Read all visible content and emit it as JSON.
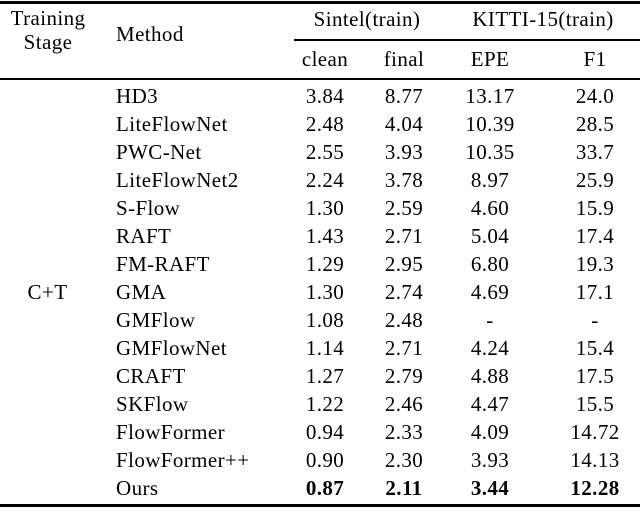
{
  "colors": {
    "text": "#000000",
    "background": "#ffffff",
    "rule": "#000000"
  },
  "table": {
    "header": {
      "stage_line1": "Training",
      "stage_line2": "Stage",
      "method": "Method",
      "group_sintel": "Sintel(train)",
      "group_kitti": "KITTI-15(train)",
      "sub_clean": "clean",
      "sub_final": "final",
      "sub_epe": "EPE",
      "sub_f1": "F1"
    },
    "training_stage": "C+T",
    "rows": [
      {
        "method": "HD3",
        "clean": "3.84",
        "final": "8.77",
        "epe": "13.17",
        "f1": "24.0"
      },
      {
        "method": "LiteFlowNet",
        "clean": "2.48",
        "final": "4.04",
        "epe": "10.39",
        "f1": "28.5"
      },
      {
        "method": "PWC-Net",
        "clean": "2.55",
        "final": "3.93",
        "epe": "10.35",
        "f1": "33.7"
      },
      {
        "method": "LiteFlowNet2",
        "clean": "2.24",
        "final": "3.78",
        "epe": "8.97",
        "f1": "25.9"
      },
      {
        "method": "S-Flow",
        "clean": "1.30",
        "final": "2.59",
        "epe": "4.60",
        "f1": "15.9"
      },
      {
        "method": "RAFT",
        "clean": "1.43",
        "final": "2.71",
        "epe": "5.04",
        "f1": "17.4"
      },
      {
        "method": "FM-RAFT",
        "clean": "1.29",
        "final": "2.95",
        "epe": "6.80",
        "f1": "19.3"
      },
      {
        "method": "GMA",
        "clean": "1.30",
        "final": "2.74",
        "epe": "4.69",
        "f1": "17.1"
      },
      {
        "method": "GMFlow",
        "clean": "1.08",
        "final": "2.48",
        "epe": "-",
        "f1": "-"
      },
      {
        "method": "GMFlowNet",
        "clean": "1.14",
        "final": "2.71",
        "epe": "4.24",
        "f1": "15.4"
      },
      {
        "method": "CRAFT",
        "clean": "1.27",
        "final": "2.79",
        "epe": "4.88",
        "f1": "17.5"
      },
      {
        "method": "SKFlow",
        "clean": "1.22",
        "final": "2.46",
        "epe": "4.47",
        "f1": "15.5"
      },
      {
        "method": "FlowFormer",
        "clean": "0.94",
        "final": "2.33",
        "epe": "4.09",
        "f1": "14.72"
      },
      {
        "method": "FlowFormer++",
        "clean": "0.90",
        "final": "2.30",
        "epe": "3.93",
        "f1": "14.13"
      },
      {
        "method": "Ours",
        "clean": "0.87",
        "final": "2.11",
        "epe": "3.44",
        "f1": "12.28"
      }
    ]
  }
}
